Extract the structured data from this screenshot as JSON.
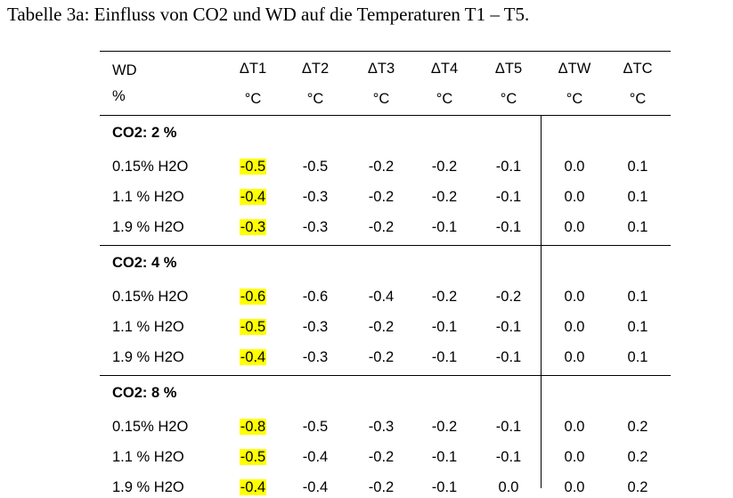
{
  "caption": "Tabelle 3a: Einfluss von CO2 und WD auf die Temperaturen T1 – T5.",
  "colors": {
    "highlight": "#ffff00",
    "text": "#000000",
    "rule": "#000000"
  },
  "table": {
    "head_first": [
      "WD",
      "%"
    ],
    "headers": [
      {
        "name": "ΔT1",
        "unit": "°C"
      },
      {
        "name": "ΔT2",
        "unit": "°C"
      },
      {
        "name": "ΔT3",
        "unit": "°C"
      },
      {
        "name": "ΔT4",
        "unit": "°C"
      },
      {
        "name": "ΔT5",
        "unit": "°C"
      },
      {
        "name": "ΔTW",
        "unit": "°C"
      },
      {
        "name": "ΔTC",
        "unit": "°C"
      }
    ],
    "groups": [
      {
        "title": "CO2: 2 %",
        "rows": [
          {
            "label": "0.15% H2O",
            "values": [
              "-0.5",
              "-0.5",
              "-0.2",
              "-0.2",
              "-0.1",
              "0.0",
              "0.1"
            ]
          },
          {
            "label": "1.1 % H2O",
            "values": [
              "-0.4",
              "-0.3",
              "-0.2",
              "-0.2",
              "-0.1",
              "0.0",
              "0.1"
            ]
          },
          {
            "label": "1.9 % H2O",
            "values": [
              "-0.3",
              "-0.3",
              "-0.2",
              "-0.1",
              "-0.1",
              "0.0",
              "0.1"
            ]
          }
        ]
      },
      {
        "title": "CO2: 4 %",
        "rows": [
          {
            "label": "0.15% H2O",
            "values": [
              "-0.6",
              "-0.6",
              "-0.4",
              "-0.2",
              "-0.2",
              "0.0",
              "0.1"
            ]
          },
          {
            "label": "1.1 % H2O",
            "values": [
              "-0.5",
              "-0.3",
              "-0.2",
              "-0.1",
              "-0.1",
              "0.0",
              "0.1"
            ]
          },
          {
            "label": "1.9 % H2O",
            "values": [
              "-0.4",
              "-0.3",
              "-0.2",
              "-0.1",
              "-0.1",
              "0.0",
              "0.1"
            ]
          }
        ]
      },
      {
        "title": "CO2: 8 %",
        "rows": [
          {
            "label": "0.15% H2O",
            "values": [
              "-0.8",
              "-0.5",
              "-0.3",
              "-0.2",
              "-0.1",
              "0.0",
              "0.2"
            ]
          },
          {
            "label": "1.1 % H2O",
            "values": [
              "-0.5",
              "-0.4",
              "-0.2",
              "-0.1",
              "-0.1",
              "0.0",
              "0.2"
            ]
          },
          {
            "label": "1.9 % H2O",
            "values": [
              "-0.4",
              "-0.4",
              "-0.2",
              "-0.1",
              "0.0",
              "0.0",
              "0.2"
            ]
          }
        ]
      }
    ],
    "highlighted_column": "ΔT1"
  }
}
